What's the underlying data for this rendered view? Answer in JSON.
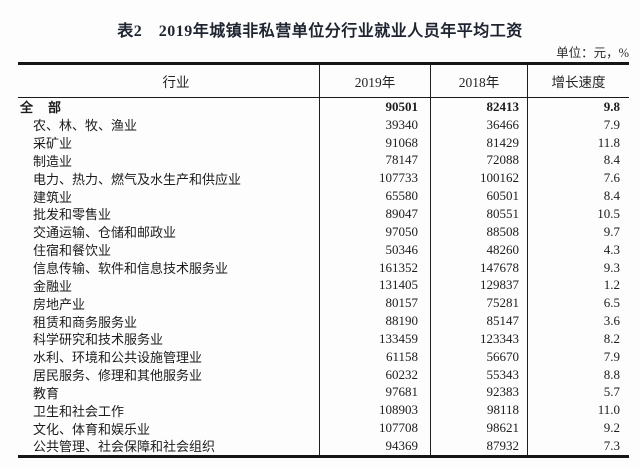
{
  "page": {
    "title": "表2　2019年城镇非私营单位分行业就业人员年平均工资",
    "unit_note": "单位：元，%"
  },
  "table": {
    "columns": {
      "industry": "行业",
      "y2019": "2019年",
      "y2018": "2018年",
      "growth": "增长速度"
    },
    "rows": [
      {
        "label": "全　部",
        "v2019": "90501",
        "v2018": "82413",
        "growth": "9.8"
      },
      {
        "label": "农、林、牧、渔业",
        "v2019": "39340",
        "v2018": "36466",
        "growth": "7.9"
      },
      {
        "label": "采矿业",
        "v2019": "91068",
        "v2018": "81429",
        "growth": "11.8"
      },
      {
        "label": "制造业",
        "v2019": "78147",
        "v2018": "72088",
        "growth": "8.4"
      },
      {
        "label": "电力、热力、燃气及水生产和供应业",
        "v2019": "107733",
        "v2018": "100162",
        "growth": "7.6"
      },
      {
        "label": "建筑业",
        "v2019": "65580",
        "v2018": "60501",
        "growth": "8.4"
      },
      {
        "label": "批发和零售业",
        "v2019": "89047",
        "v2018": "80551",
        "growth": "10.5"
      },
      {
        "label": "交通运输、仓储和邮政业",
        "v2019": "97050",
        "v2018": "88508",
        "growth": "9.7"
      },
      {
        "label": "住宿和餐饮业",
        "v2019": "50346",
        "v2018": "48260",
        "growth": "4.3"
      },
      {
        "label": "信息传输、软件和信息技术服务业",
        "v2019": "161352",
        "v2018": "147678",
        "growth": "9.3"
      },
      {
        "label": "金融业",
        "v2019": "131405",
        "v2018": "129837",
        "growth": "1.2"
      },
      {
        "label": "房地产业",
        "v2019": "80157",
        "v2018": "75281",
        "growth": "6.5"
      },
      {
        "label": "租赁和商务服务业",
        "v2019": "88190",
        "v2018": "85147",
        "growth": "3.6"
      },
      {
        "label": "科学研究和技术服务业",
        "v2019": "133459",
        "v2018": "123343",
        "growth": "8.2"
      },
      {
        "label": "水利、环境和公共设施管理业",
        "v2019": "61158",
        "v2018": "56670",
        "growth": "7.9"
      },
      {
        "label": "居民服务、修理和其他服务业",
        "v2019": "60232",
        "v2018": "55343",
        "growth": "8.8"
      },
      {
        "label": "教育",
        "v2019": "97681",
        "v2018": "92383",
        "growth": "5.7"
      },
      {
        "label": "卫生和社会工作",
        "v2019": "108903",
        "v2018": "98118",
        "growth": "11.0"
      },
      {
        "label": "文化、体育和娱乐业",
        "v2019": "107708",
        "v2018": "98621",
        "growth": "9.2"
      },
      {
        "label": "公共管理、社会保障和社会组织",
        "v2019": "94369",
        "v2018": "87932",
        "growth": "7.3"
      }
    ]
  }
}
